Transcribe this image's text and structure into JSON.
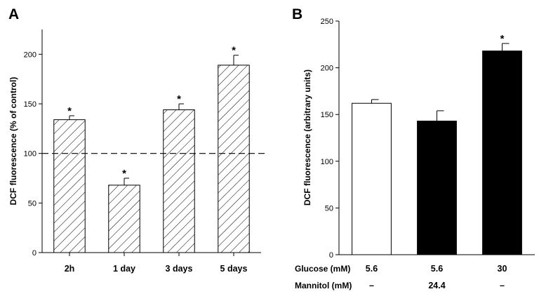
{
  "chart_data": [
    {
      "panel": "A",
      "type": "bar",
      "ylabel": "DCF fluorescence (% of control)",
      "ylim": [
        0,
        225
      ],
      "yticks": [
        0,
        50,
        100,
        150,
        200
      ],
      "categories": [
        "2h",
        "1 day",
        "3 days",
        "5 days"
      ],
      "values": [
        134,
        68,
        144,
        189
      ],
      "errors": [
        4,
        7,
        6,
        10
      ],
      "significance": [
        "*",
        "*",
        "*",
        "*"
      ],
      "bar_fill": "hatched",
      "reference_line": 100,
      "reference_style": "dashed"
    },
    {
      "panel": "B",
      "type": "bar",
      "ylabel": "DCF fluorescence (arbitrary units)",
      "ylim": [
        0,
        250
      ],
      "yticks": [
        0,
        50,
        100,
        150,
        200,
        250
      ],
      "categories": [
        "5.6",
        "5.6",
        "30"
      ],
      "values": [
        162,
        143,
        218
      ],
      "errors": [
        4,
        11,
        8
      ],
      "significance": [
        "",
        "",
        "*"
      ],
      "bar_colors": [
        "#ffffff",
        "#000000",
        "#000000"
      ],
      "condition_rows": [
        {
          "label": "Glucose (mM)",
          "values": [
            "5.6",
            "5.6",
            "30"
          ]
        },
        {
          "label": "Mannitol (mM)",
          "values": [
            "–",
            "24.4",
            "–"
          ]
        }
      ]
    }
  ]
}
